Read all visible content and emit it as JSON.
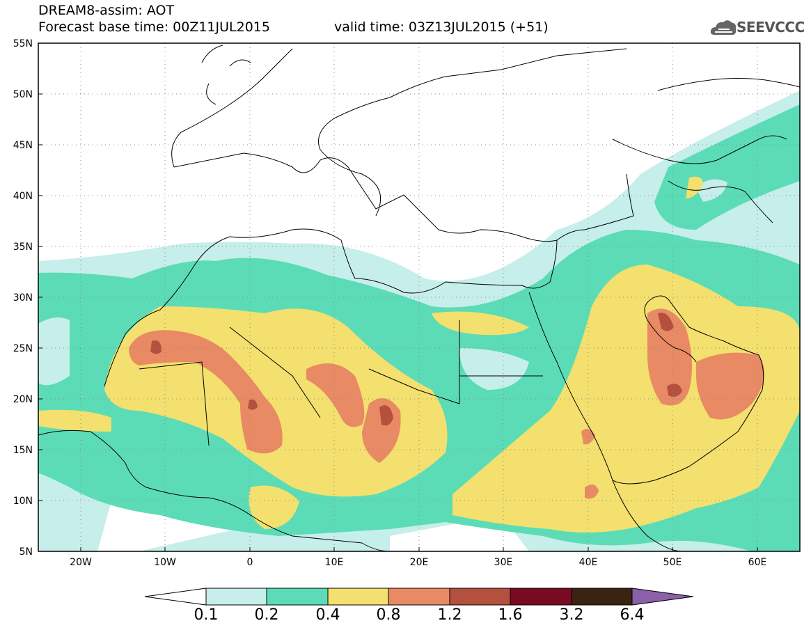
{
  "header": {
    "line1": "DREAM8-assim: AOT",
    "line2": "Forecast base time: 00Z11JUL2015",
    "line3": "valid time: 03Z13JUL2015 (+51)",
    "logo_text": "SEEVCCC"
  },
  "axes": {
    "lat_labels": [
      "55N",
      "50N",
      "45N",
      "40N",
      "35N",
      "30N",
      "25N",
      "20N",
      "15N",
      "10N",
      "5N"
    ],
    "lon_labels": [
      "20W",
      "10W",
      "0",
      "10E",
      "20E",
      "30E",
      "40E",
      "50E",
      "60E"
    ]
  },
  "colorbar": {
    "labels": [
      "0.1",
      "0.2",
      "0.4",
      "0.8",
      "1.2",
      "1.6",
      "3.2",
      "6.4"
    ],
    "colors": [
      "#ffffff",
      "#c6eeea",
      "#5cdcb6",
      "#f3e06e",
      "#e88a64",
      "#b4503e",
      "#7a0a22",
      "#3a2410",
      "#8a60a8"
    ]
  },
  "map_data": {
    "variable": "AOT",
    "lon_range": [
      -25,
      65
    ],
    "lat_range": [
      5,
      55
    ],
    "colors": {
      "outline": "#000000",
      "grid": "#888888",
      "level_0_1": "#c6eeea",
      "level_0_2": "#5cdcb6",
      "level_0_4": "#f3e06e",
      "level_0_8": "#e88a64",
      "level_1_2": "#b4503e"
    }
  }
}
